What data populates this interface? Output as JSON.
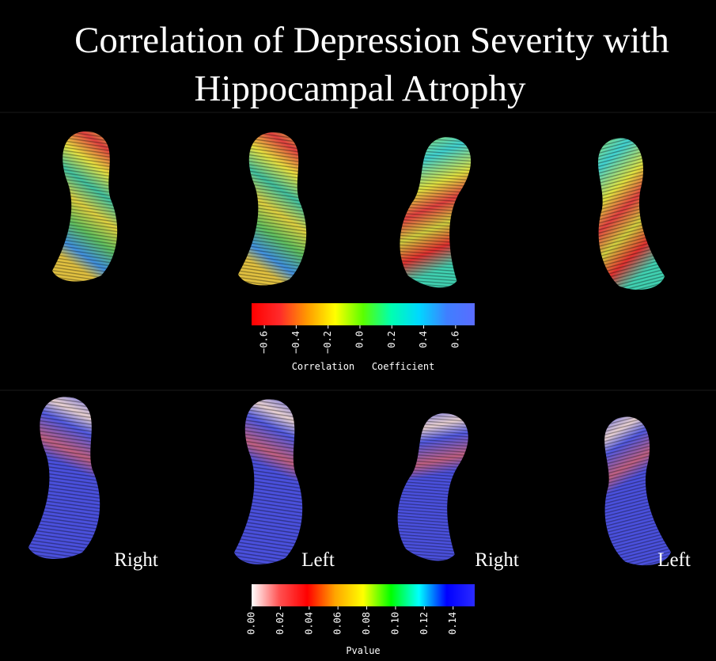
{
  "title": [
    "Correlation of Depression Severity with",
    "Hippocampal Atrophy"
  ],
  "colorbars": [
    {
      "label": "Correlation   Coefficient",
      "range": [
        -0.68,
        0.72
      ],
      "colors": [
        "#ff0000",
        "#ff2a2a",
        "#ff9a00",
        "#ffff00",
        "#5aff00",
        "#00ffb0",
        "#00d8ff",
        "#3f7fff",
        "#5a6cff"
      ],
      "ticks": [
        {
          "value": -0.6,
          "label": "−0.6"
        },
        {
          "value": -0.4,
          "label": "−0.4"
        },
        {
          "value": -0.2,
          "label": "−0.2"
        },
        {
          "value": 0,
          "label": "0.0"
        },
        {
          "value": 0.2,
          "label": "0.2"
        },
        {
          "value": 0.4,
          "label": "0.4"
        },
        {
          "value": 0.6,
          "label": "0.6"
        }
      ]
    },
    {
      "label": "Pvalue",
      "range": [
        0,
        0.155
      ],
      "colors": [
        "#ffffff",
        "#ff5050",
        "#ff0000",
        "#ffa500",
        "#ffff00",
        "#00ff00",
        "#00ffff",
        "#0000ff",
        "#2a2aff"
      ],
      "ticks": [
        {
          "value": 0,
          "label": "0.00"
        },
        {
          "value": 0.02,
          "label": "0.02"
        },
        {
          "value": 0.04,
          "label": "0.04"
        },
        {
          "value": 0.06,
          "label": "0.06"
        },
        {
          "value": 0.08,
          "label": "0.08"
        },
        {
          "value": 0.1,
          "label": "0.10"
        },
        {
          "value": 0.12,
          "label": "0.12"
        },
        {
          "value": 0.14,
          "label": "0.14"
        }
      ]
    }
  ],
  "view_labels": [
    "Right",
    "Left",
    "Right",
    "Left"
  ]
}
